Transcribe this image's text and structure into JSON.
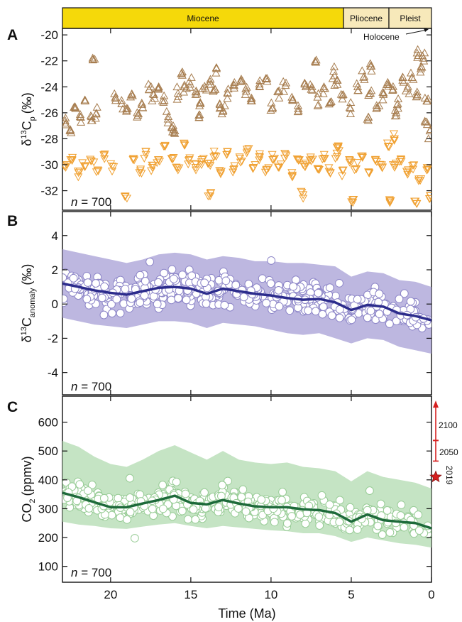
{
  "colors": {
    "epoch_fill": "#f5d90a",
    "epoch_fill_light": "#f7e9ba",
    "panel_a_up": "#a67c4e",
    "panel_a_down": "#f0a030",
    "panel_b_band": "#a79fd6",
    "panel_b_line": "#2c2c8c",
    "panel_b_point": "#8d86c8",
    "panel_c_band": "#b2dbb0",
    "panel_c_line": "#1d6a3a",
    "panel_c_point": "#98cc96",
    "future_markers": "#d62020"
  },
  "epochs": {
    "miocene": "Miocene",
    "pliocene": "Pliocene",
    "pleist": "Pleist",
    "holocene": "Holocene"
  },
  "x_axis": {
    "label": "Time (Ma)",
    "ticks": [
      "20",
      "15",
      "10",
      "5",
      "0"
    ]
  },
  "panels": {
    "a": {
      "letter": "A",
      "n_label": "= 700",
      "y_ticks": [
        "-20",
        "-22",
        "-24",
        "-26",
        "-28",
        "-30",
        "-32"
      ],
      "ylabel_delta": "δ",
      "ylabel_sup": "13",
      "ylabel_main": "C",
      "ylabel_sub": "p",
      "ylabel_unit": "(‰)"
    },
    "b": {
      "letter": "B",
      "n_label": "= 700",
      "y_ticks": [
        "4",
        "2",
        "0",
        "-2",
        "-4"
      ],
      "ylabel_delta": "δ",
      "ylabel_sup": "13",
      "ylabel_main": "C",
      "ylabel_sub": "anomaly",
      "ylabel_unit": "(‰)"
    },
    "c": {
      "letter": "C",
      "n_label": "= 700",
      "y_ticks": [
        "600",
        "500",
        "400",
        "300",
        "200",
        "100"
      ],
      "ylabel_main": "CO",
      "ylabel_sub": "2",
      "ylabel_unit": "(ppmv)",
      "markers": {
        "y2100": "2100",
        "y2050": "2050",
        "y2019": "2019"
      }
    }
  },
  "chart_data": [
    {
      "type": "scatter",
      "panel": "A",
      "x_range": [
        23,
        0
      ],
      "ylim": [
        -33.5,
        -19.5
      ],
      "series": [
        {
          "marker": "triangle-up",
          "points": [
            [
              22.8,
              -26.8
            ],
            [
              22.5,
              -27.4
            ],
            [
              22.2,
              -25.6
            ],
            [
              21.9,
              -26.3
            ],
            [
              21.6,
              -25.1
            ],
            [
              21.2,
              -26.6
            ],
            [
              20.9,
              -26.1
            ],
            [
              19.7,
              -24.8
            ],
            [
              19.3,
              -25.3
            ],
            [
              19.0,
              -25.8
            ],
            [
              18.7,
              -24.6
            ],
            [
              18.3,
              -26.2
            ],
            [
              18.0,
              -25.6
            ],
            [
              17.6,
              -24.2
            ],
            [
              17.3,
              -24.6
            ],
            [
              17.0,
              -24.0
            ],
            [
              16.7,
              -25.2
            ],
            [
              16.4,
              -26.3
            ],
            [
              16.1,
              -27.0
            ],
            [
              15.8,
              -24.5
            ],
            [
              15.4,
              -24.0
            ],
            [
              15.1,
              -23.6
            ],
            [
              14.7,
              -24.6
            ],
            [
              14.4,
              -25.3
            ],
            [
              14.1,
              -24.1
            ],
            [
              13.8,
              -23.6
            ],
            [
              13.5,
              -24.2
            ],
            [
              13.2,
              -25.3
            ],
            [
              13.0,
              -25.9
            ],
            [
              12.7,
              -24.5
            ],
            [
              12.3,
              -24.1
            ],
            [
              11.9,
              -23.6
            ],
            [
              11.6,
              -24.6
            ],
            [
              11.2,
              -25.1
            ],
            [
              10.7,
              -24.0
            ],
            [
              10.3,
              -23.4
            ],
            [
              9.9,
              -25.6
            ],
            [
              9.5,
              -24.3
            ],
            [
              9.1,
              -23.9
            ],
            [
              8.7,
              -24.8
            ],
            [
              8.3,
              -25.7
            ],
            [
              7.9,
              -23.8
            ],
            [
              7.5,
              -24.2
            ],
            [
              7.1,
              -24.8
            ],
            [
              6.7,
              -24.0
            ],
            [
              6.3,
              -25.2
            ],
            [
              5.9,
              -23.5
            ],
            [
              5.5,
              -24.6
            ],
            [
              5.1,
              -25.6
            ],
            [
              4.6,
              -24.0
            ],
            [
              4.2,
              -23.2
            ],
            [
              3.8,
              -24.5
            ],
            [
              3.4,
              -25.6
            ],
            [
              3.0,
              -24.6
            ],
            [
              2.7,
              -23.8
            ],
            [
              2.4,
              -24.2
            ],
            [
              2.1,
              -25.3
            ],
            [
              1.8,
              -23.5
            ],
            [
              1.5,
              -24.1
            ],
            [
              1.2,
              -23.3
            ],
            [
              0.9,
              -24.6
            ],
            [
              0.6,
              -22.5
            ],
            [
              0.3,
              -25.1
            ],
            [
              0.1,
              -27.4
            ],
            [
              21.1,
              -21.9
            ],
            [
              15.6,
              -23.0
            ],
            [
              13.4,
              -22.6
            ],
            [
              7.2,
              -22.1
            ],
            [
              6.1,
              -22.8
            ],
            [
              3.8,
              -22.4
            ],
            [
              0.9,
              -21.4
            ],
            [
              0.5,
              -21.8
            ],
            [
              16.0,
              -27.6
            ],
            [
              14.5,
              -26.2
            ],
            [
              4.0,
              -26.5
            ],
            [
              2.2,
              -26.0
            ],
            [
              0.3,
              -26.7
            ]
          ]
        },
        {
          "marker": "triangle-down",
          "points": [
            [
              22.8,
              -30.2
            ],
            [
              22.4,
              -29.6
            ],
            [
              22.0,
              -30.6
            ],
            [
              21.6,
              -30.1
            ],
            [
              21.2,
              -29.7
            ],
            [
              20.8,
              -30.4
            ],
            [
              20.4,
              -29.3
            ],
            [
              19.9,
              -30.1
            ],
            [
              19.1,
              -32.4
            ],
            [
              18.6,
              -29.6
            ],
            [
              18.2,
              -30.6
            ],
            [
              17.8,
              -29.2
            ],
            [
              17.4,
              -30.2
            ],
            [
              17.0,
              -29.6
            ],
            [
              16.6,
              -28.5
            ],
            [
              16.2,
              -29.5
            ],
            [
              15.8,
              -30.4
            ],
            [
              15.4,
              -28.4
            ],
            [
              15.1,
              -29.6
            ],
            [
              14.7,
              -30.2
            ],
            [
              14.3,
              -29.6
            ],
            [
              13.9,
              -29.9
            ],
            [
              13.5,
              -29.3
            ],
            [
              13.1,
              -30.5
            ],
            [
              12.7,
              -29.0
            ],
            [
              12.3,
              -30.3
            ],
            [
              11.9,
              -29.8
            ],
            [
              11.5,
              -28.8
            ],
            [
              11.1,
              -30.2
            ],
            [
              10.7,
              -29.4
            ],
            [
              10.3,
              -30.4
            ],
            [
              9.9,
              -29.6
            ],
            [
              9.5,
              -30.2
            ],
            [
              9.1,
              -29.2
            ],
            [
              8.7,
              -30.6
            ],
            [
              8.3,
              -29.6
            ],
            [
              7.9,
              -30.1
            ],
            [
              7.5,
              -29.7
            ],
            [
              7.1,
              -30.3
            ],
            [
              6.7,
              -29.5
            ],
            [
              6.3,
              -30.6
            ],
            [
              5.9,
              -29.1
            ],
            [
              5.5,
              -30.4
            ],
            [
              5.1,
              -29.8
            ],
            [
              4.7,
              -30.3
            ],
            [
              4.3,
              -29.4
            ],
            [
              3.9,
              -30.6
            ],
            [
              3.5,
              -29.6
            ],
            [
              3.1,
              -30.0
            ],
            [
              2.7,
              -28.6
            ],
            [
              2.3,
              -30.2
            ],
            [
              1.9,
              -29.6
            ],
            [
              1.5,
              -30.6
            ],
            [
              1.1,
              -30.0
            ],
            [
              0.7,
              -31.2
            ],
            [
              0.3,
              -30.4
            ],
            [
              0.1,
              -32.6
            ],
            [
              13.8,
              -32.4
            ],
            [
              8.0,
              -32.3
            ],
            [
              4.9,
              -32.9
            ],
            [
              2.6,
              -32.8
            ],
            [
              1.0,
              -32.8
            ],
            [
              2.3,
              -28.0
            ],
            [
              5.8,
              -28.6
            ]
          ]
        }
      ]
    },
    {
      "type": "line",
      "panel": "B",
      "x_range": [
        23,
        0
      ],
      "ylim": [
        -5.3,
        5.4
      ],
      "series": [
        {
          "name": "",
          "x": [
            23,
            22,
            21,
            20,
            19,
            18,
            17,
            16,
            15,
            14,
            13,
            12,
            11,
            10,
            9,
            8,
            7,
            6,
            5,
            4,
            3,
            2,
            1,
            0
          ],
          "values": [
            1.2,
            1.0,
            0.8,
            0.65,
            0.55,
            0.75,
            0.95,
            1.0,
            0.9,
            0.6,
            0.9,
            0.75,
            0.6,
            0.5,
            0.35,
            0.25,
            0.3,
            0.1,
            -0.35,
            -0.05,
            -0.15,
            -0.55,
            -0.7,
            -0.95
          ]
        },
        {
          "name": "",
          "x": [
            23,
            22,
            21,
            20,
            19,
            18,
            17,
            16,
            15,
            14,
            13,
            12,
            11,
            10,
            9,
            8,
            7,
            6,
            5,
            4,
            3,
            2,
            1,
            0
          ],
          "upper": [
            3.2,
            3.0,
            2.8,
            2.6,
            2.4,
            2.6,
            2.9,
            3.0,
            2.9,
            2.6,
            2.8,
            2.7,
            2.5,
            2.5,
            2.4,
            2.4,
            2.3,
            2.2,
            1.6,
            1.9,
            1.8,
            1.4,
            1.3,
            1.0
          ],
          "lower": [
            -0.8,
            -1.0,
            -1.2,
            -1.3,
            -1.4,
            -1.2,
            -1.0,
            -1.0,
            -1.1,
            -1.4,
            -1.1,
            -1.2,
            -1.3,
            -1.5,
            -1.7,
            -1.8,
            -1.7,
            -2.0,
            -2.3,
            -2.0,
            -2.1,
            -2.5,
            -2.7,
            -2.9
          ]
        }
      ]
    },
    {
      "type": "line",
      "panel": "C",
      "x_range": [
        23,
        0
      ],
      "ylim": [
        45,
        690
      ],
      "series": [
        {
          "name": "",
          "x": [
            23,
            22,
            21,
            20,
            19,
            18,
            17,
            16,
            15,
            14,
            13,
            12,
            11,
            10,
            9,
            8,
            7,
            6,
            5,
            4,
            3,
            2,
            1,
            0
          ],
          "values": [
            355,
            340,
            322,
            305,
            305,
            318,
            330,
            345,
            320,
            315,
            330,
            318,
            308,
            305,
            305,
            298,
            295,
            285,
            255,
            280,
            260,
            255,
            250,
            232
          ]
        },
        {
          "name": "",
          "x": [
            23,
            22,
            21,
            20,
            19,
            18,
            17,
            16,
            15,
            14,
            13,
            12,
            11,
            10,
            9,
            8,
            7,
            6,
            5,
            4,
            3,
            2,
            1,
            0
          ],
          "upper": [
            535,
            515,
            480,
            455,
            445,
            470,
            500,
            520,
            495,
            470,
            500,
            470,
            460,
            455,
            460,
            445,
            440,
            430,
            395,
            430,
            410,
            400,
            390,
            370
          ],
          "lower": [
            255,
            245,
            240,
            232,
            230,
            238,
            245,
            250,
            240,
            232,
            240,
            235,
            230,
            225,
            222,
            215,
            215,
            205,
            185,
            200,
            190,
            180,
            175,
            165
          ]
        },
        {
          "name": "",
          "projection_markers": {
            "2100": [
              537,
              670
            ],
            "2050": [
              465,
              536
            ],
            "2019": 410
          }
        }
      ]
    }
  ]
}
